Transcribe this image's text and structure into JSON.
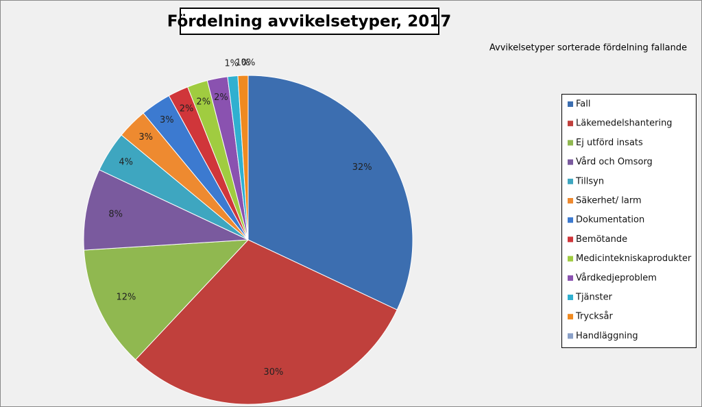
{
  "chart_data": {
    "type": "pie",
    "title": "Fördelning avvikelsetyper, 2017",
    "subtitle": "Avvikelsetyper sorterade  fördelning fallande",
    "categories": [
      "Fall",
      "Läkemedelshantering",
      "Ej utförd insats",
      "Vård och Omsorg",
      "Tillsyn",
      "Säkerhet/ larm",
      "Dokumentation",
      "Bemötande",
      "Medicintekniskaprodukter",
      "Vårdkedjeproblem",
      "Tjänster",
      "Trycksår",
      "Handläggning"
    ],
    "values": [
      32,
      30,
      12,
      8,
      4,
      3,
      3,
      2,
      2,
      2,
      1,
      1,
      0
    ],
    "value_labels": [
      "32%",
      "30%",
      "12%",
      "8%",
      "4%",
      "3%",
      "3%",
      "2%",
      "2%",
      "2%",
      "1%",
      "1%",
      "0%"
    ],
    "colors": [
      "#3c6eb0",
      "#c0403c",
      "#90b850",
      "#7a5a9e",
      "#3ea6c0",
      "#ee8a30",
      "#3c7ad0",
      "#d0363a",
      "#a0cc40",
      "#8a52b0",
      "#30b0d0",
      "#f08a20",
      "#8aa0c8"
    ],
    "legend": "right"
  }
}
